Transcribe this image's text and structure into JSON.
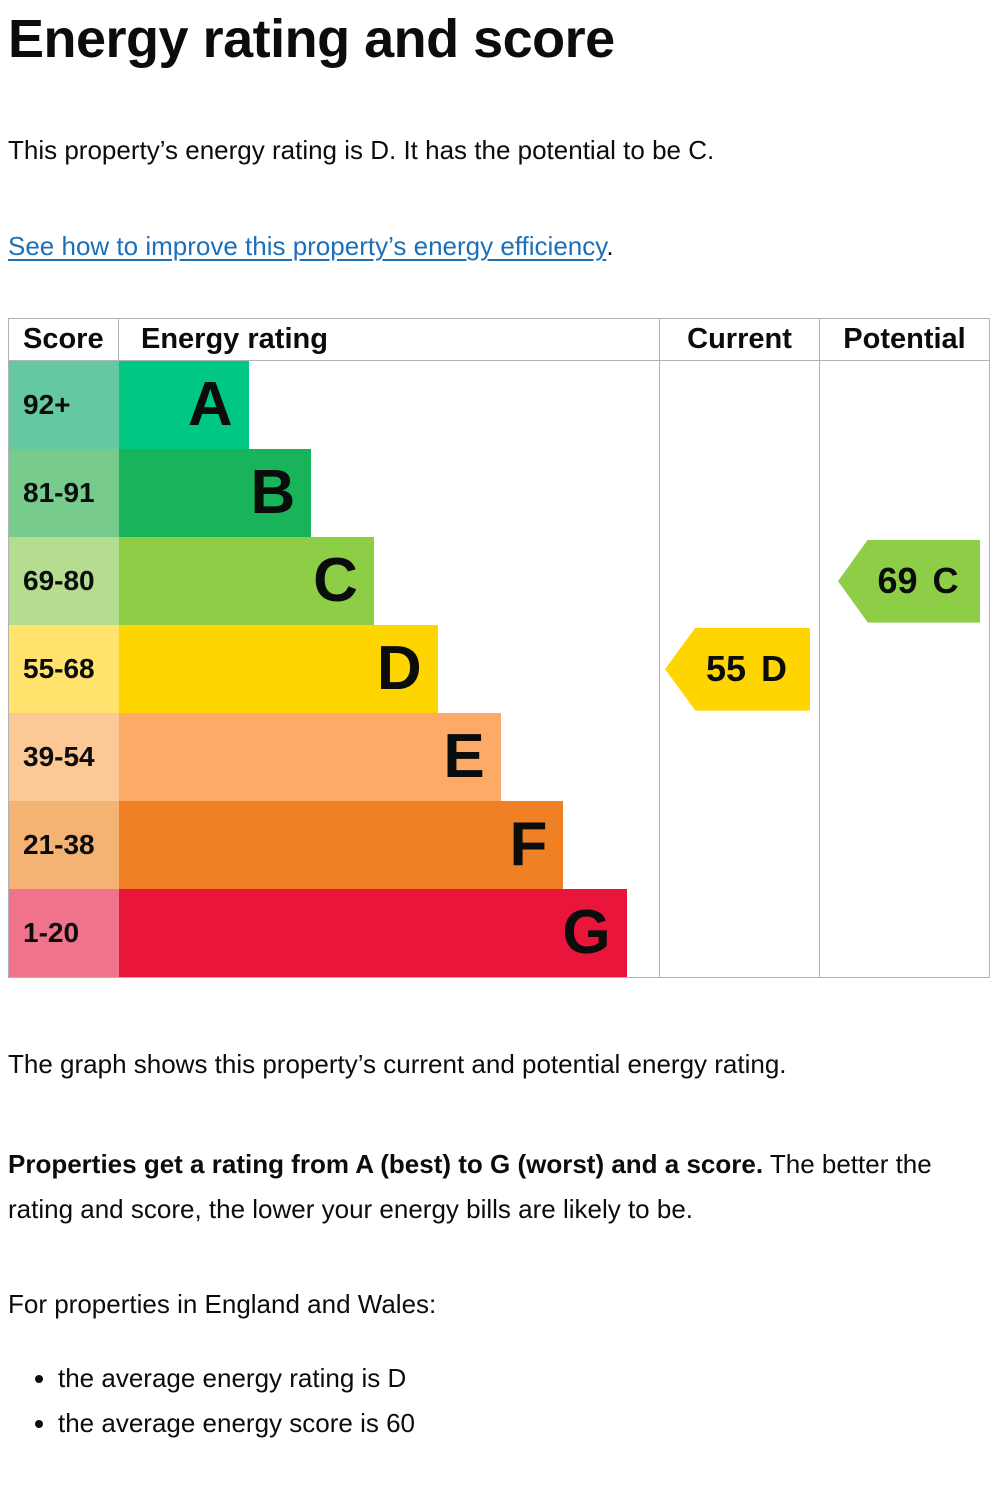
{
  "page": {
    "title": "Energy rating and score",
    "intro": "This property’s energy rating is D. It has the potential to be C.",
    "improve_link_text": "See how to improve this property’s energy efficiency",
    "improve_link_suffix": ".",
    "graph_caption": "The graph shows this property’s current and potential energy rating.",
    "explain_bold": "Properties get a rating from A (best) to G (worst) and a score.",
    "explain_rest": " The better the rating and score, the lower your energy bills are likely to be.",
    "region_heading": "For properties in England and Wales:",
    "bullets": [
      "the average energy rating is D",
      "the average energy score is 60"
    ]
  },
  "table": {
    "headers": {
      "score": "Score",
      "rating": "Energy rating",
      "current": "Current",
      "potential": "Potential"
    }
  },
  "colors": {
    "text": "#0b0c0c",
    "link": "#1d70b8",
    "table_border": "#b1b4b6",
    "current_arrow": "#ffd500",
    "potential_arrow": "#8dce46"
  },
  "chart_data": {
    "type": "bar",
    "title": "EPC energy rating graph",
    "legend": [
      "Current",
      "Potential"
    ],
    "bands": [
      {
        "letter": "A",
        "score_range": "92+",
        "color": "#00c781",
        "tint": "#64c8a0",
        "bar_pct": 24.0
      },
      {
        "letter": "B",
        "score_range": "81-91",
        "color": "#19b459",
        "tint": "#77cb8d",
        "bar_pct": 35.6
      },
      {
        "letter": "C",
        "score_range": "69-80",
        "color": "#8dce46",
        "tint": "#b5dd90",
        "bar_pct": 47.2
      },
      {
        "letter": "D",
        "score_range": "55-68",
        "color": "#ffd500",
        "tint": "#ffe36c",
        "bar_pct": 59.0
      },
      {
        "letter": "E",
        "score_range": "39-54",
        "color": "#fcaa65",
        "tint": "#fcc896",
        "bar_pct": 70.7
      },
      {
        "letter": "F",
        "score_range": "21-38",
        "color": "#ef8023",
        "tint": "#f4b273",
        "bar_pct": 82.3
      },
      {
        "letter": "G",
        "score_range": "1-20",
        "color": "#e9153b",
        "tint": "#f0738c",
        "bar_pct": 94.0
      }
    ],
    "current": {
      "score": "55",
      "letter": "D",
      "band_index": 3
    },
    "potential": {
      "score": "69",
      "letter": "C",
      "band_index": 2
    }
  }
}
